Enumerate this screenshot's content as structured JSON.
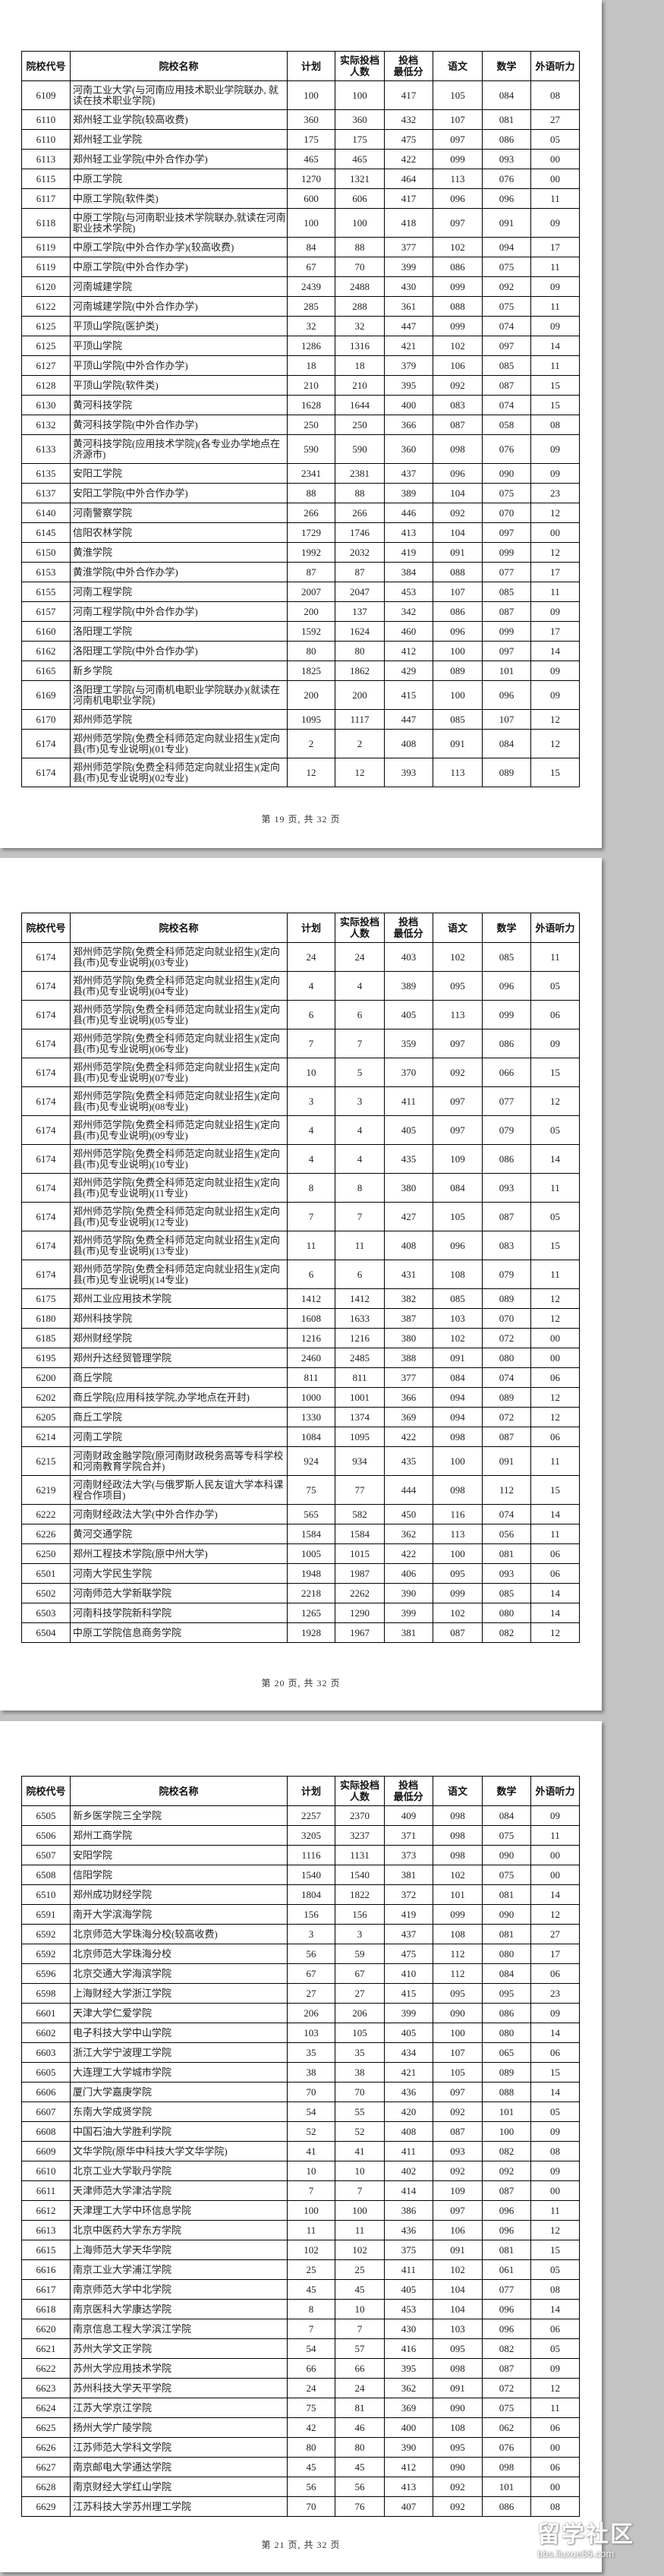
{
  "columns": [
    "院校代号",
    "院校名称",
    "计划",
    "实际投档人数",
    "投档最低分",
    "语文",
    "数学",
    "外语听力"
  ],
  "header_lines": {
    "actual": [
      "实际投档",
      "人数"
    ],
    "min": [
      "投档",
      "最低分"
    ]
  },
  "pages": [
    {
      "footer": "第 19 页, 共 32 页",
      "rows": [
        [
          "6109",
          "河南工业大学(与河南应用技术职业学院联办, 就读在技术职业学院)",
          "100",
          "100",
          "417",
          "105",
          "084",
          "08"
        ],
        [
          "6110",
          "郑州轻工业学院(较高收费)",
          "360",
          "360",
          "432",
          "107",
          "081",
          "27"
        ],
        [
          "6110",
          "郑州轻工业学院",
          "175",
          "175",
          "475",
          "097",
          "086",
          "05"
        ],
        [
          "6113",
          "郑州轻工业学院(中外合作办学)",
          "465",
          "465",
          "422",
          "099",
          "093",
          "00"
        ],
        [
          "6115",
          "中原工学院",
          "1270",
          "1321",
          "464",
          "113",
          "076",
          "00"
        ],
        [
          "6117",
          "中原工学院(软件类)",
          "600",
          "606",
          "417",
          "096",
          "096",
          "11"
        ],
        [
          "6118",
          "中原工学院(与河南职业技术学院联办,就读在河南职业技术学院)",
          "100",
          "100",
          "418",
          "097",
          "091",
          "09"
        ],
        [
          "6119",
          "中原工学院(中外合作办学)(较高收费)",
          "84",
          "88",
          "377",
          "102",
          "094",
          "17"
        ],
        [
          "6119",
          "中原工学院(中外合作办学)",
          "67",
          "70",
          "399",
          "086",
          "075",
          "11"
        ],
        [
          "6120",
          "河南城建学院",
          "2439",
          "2488",
          "430",
          "099",
          "092",
          "09"
        ],
        [
          "6122",
          "河南城建学院(中外合作办学)",
          "285",
          "288",
          "361",
          "088",
          "075",
          "11"
        ],
        [
          "6125",
          "平顶山学院(医护类)",
          "32",
          "32",
          "447",
          "099",
          "074",
          "09"
        ],
        [
          "6125",
          "平顶山学院",
          "1286",
          "1316",
          "421",
          "102",
          "097",
          "14"
        ],
        [
          "6127",
          "平顶山学院(中外合作办学)",
          "18",
          "18",
          "379",
          "106",
          "085",
          "11"
        ],
        [
          "6128",
          "平顶山学院(软件类)",
          "210",
          "210",
          "395",
          "092",
          "087",
          "15"
        ],
        [
          "6130",
          "黄河科技学院",
          "1628",
          "1644",
          "400",
          "083",
          "074",
          "15"
        ],
        [
          "6132",
          "黄河科技学院(中外合作办学)",
          "250",
          "250",
          "366",
          "087",
          "058",
          "08"
        ],
        [
          "6133",
          "黄河科技学院(应用技术学院)(各专业办学地点在济源市)",
          "590",
          "590",
          "360",
          "098",
          "076",
          "09"
        ],
        [
          "6135",
          "安阳工学院",
          "2341",
          "2381",
          "437",
          "096",
          "090",
          "09"
        ],
        [
          "6137",
          "安阳工学院(中外合作办学)",
          "88",
          "88",
          "389",
          "104",
          "075",
          "23"
        ],
        [
          "6140",
          "河南警察学院",
          "266",
          "266",
          "446",
          "092",
          "070",
          "12"
        ],
        [
          "6145",
          "信阳农林学院",
          "1729",
          "1746",
          "413",
          "104",
          "097",
          "00"
        ],
        [
          "6150",
          "黄淮学院",
          "1992",
          "2032",
          "419",
          "091",
          "099",
          "12"
        ],
        [
          "6153",
          "黄淮学院(中外合作办学)",
          "87",
          "87",
          "384",
          "088",
          "077",
          "17"
        ],
        [
          "6155",
          "河南工程学院",
          "2007",
          "2047",
          "453",
          "107",
          "085",
          "11"
        ],
        [
          "6157",
          "河南工程学院(中外合作办学)",
          "200",
          "137",
          "342",
          "086",
          "087",
          "09"
        ],
        [
          "6160",
          "洛阳理工学院",
          "1592",
          "1624",
          "460",
          "096",
          "099",
          "17"
        ],
        [
          "6162",
          "洛阳理工学院(中外合作办学)",
          "80",
          "80",
          "412",
          "100",
          "097",
          "14"
        ],
        [
          "6165",
          "新乡学院",
          "1825",
          "1862",
          "429",
          "089",
          "101",
          "09"
        ],
        [
          "6169",
          "洛阳理工学院(与河南机电职业学院联办)(就读在河南机电职业学院)",
          "200",
          "200",
          "415",
          "100",
          "096",
          "09"
        ],
        [
          "6170",
          "郑州师范学院",
          "1095",
          "1117",
          "447",
          "085",
          "107",
          "12"
        ],
        [
          "6174",
          "郑州师范学院(免费全科师范定向就业招生)(定向县(市)见专业说明)(01专业)",
          "2",
          "2",
          "408",
          "091",
          "084",
          "12"
        ],
        [
          "6174",
          "郑州师范学院(免费全科师范定向就业招生)(定向县(市)见专业说明)(02专业)",
          "12",
          "12",
          "393",
          "113",
          "089",
          "15"
        ]
      ]
    },
    {
      "footer": "第 20 页, 共 32 页",
      "rows": [
        [
          "6174",
          "郑州师范学院(免费全科师范定向就业招生)(定向县(市)见专业说明)(03专业)",
          "24",
          "24",
          "403",
          "102",
          "085",
          "11"
        ],
        [
          "6174",
          "郑州师范学院(免费全科师范定向就业招生)(定向县(市)见专业说明)(04专业)",
          "4",
          "4",
          "389",
          "095",
          "096",
          "05"
        ],
        [
          "6174",
          "郑州师范学院(免费全科师范定向就业招生)(定向县(市)见专业说明)(05专业)",
          "6",
          "6",
          "405",
          "113",
          "099",
          "06"
        ],
        [
          "6174",
          "郑州师范学院(免费全科师范定向就业招生)(定向县(市)见专业说明)(06专业)",
          "7",
          "7",
          "359",
          "097",
          "086",
          "09"
        ],
        [
          "6174",
          "郑州师范学院(免费全科师范定向就业招生)(定向县(市)见专业说明)(07专业)",
          "10",
          "5",
          "370",
          "092",
          "066",
          "15"
        ],
        [
          "6174",
          "郑州师范学院(免费全科师范定向就业招生)(定向县(市)见专业说明)(08专业)",
          "3",
          "3",
          "411",
          "097",
          "077",
          "12"
        ],
        [
          "6174",
          "郑州师范学院(免费全科师范定向就业招生)(定向县(市)见专业说明)(09专业)",
          "4",
          "4",
          "405",
          "097",
          "079",
          "05"
        ],
        [
          "6174",
          "郑州师范学院(免费全科师范定向就业招生)(定向县(市)见专业说明)(10专业)",
          "4",
          "4",
          "435",
          "109",
          "086",
          "14"
        ],
        [
          "6174",
          "郑州师范学院(免费全科师范定向就业招生)(定向县(市)见专业说明)(11专业)",
          "8",
          "8",
          "380",
          "084",
          "093",
          "11"
        ],
        [
          "6174",
          "郑州师范学院(免费全科师范定向就业招生)(定向县(市)见专业说明)(12专业)",
          "7",
          "7",
          "427",
          "105",
          "087",
          "05"
        ],
        [
          "6174",
          "郑州师范学院(免费全科师范定向就业招生)(定向县(市)见专业说明)(13专业)",
          "11",
          "11",
          "408",
          "096",
          "083",
          "15"
        ],
        [
          "6174",
          "郑州师范学院(免费全科师范定向就业招生)(定向县(市)见专业说明)(14专业)",
          "6",
          "6",
          "431",
          "108",
          "079",
          "11"
        ],
        [
          "6175",
          "郑州工业应用技术学院",
          "1412",
          "1412",
          "382",
          "085",
          "089",
          "12"
        ],
        [
          "6180",
          "郑州科技学院",
          "1608",
          "1633",
          "387",
          "103",
          "070",
          "12"
        ],
        [
          "6185",
          "郑州财经学院",
          "1216",
          "1216",
          "380",
          "102",
          "072",
          "00"
        ],
        [
          "6195",
          "郑州升达经贸管理学院",
          "2460",
          "2485",
          "388",
          "091",
          "080",
          "00"
        ],
        [
          "6200",
          "商丘学院",
          "811",
          "811",
          "377",
          "084",
          "074",
          "06"
        ],
        [
          "6202",
          "商丘学院(应用科技学院,办学地点在开封)",
          "1000",
          "1001",
          "366",
          "094",
          "089",
          "12"
        ],
        [
          "6205",
          "商丘工学院",
          "1330",
          "1374",
          "369",
          "094",
          "072",
          "12"
        ],
        [
          "6214",
          "河南工学院",
          "1084",
          "1095",
          "422",
          "098",
          "087",
          "06"
        ],
        [
          "6215",
          "河南财政金融学院(原河南财政税务高等专科学校和河南教育学院合并)",
          "924",
          "934",
          "435",
          "100",
          "091",
          "11"
        ],
        [
          "6219",
          "河南财经政法大学(与俄罗斯人民友谊大学本科课程合作项目)",
          "75",
          "77",
          "444",
          "098",
          "112",
          "15"
        ],
        [
          "6222",
          "河南财经政法大学(中外合作办学)",
          "565",
          "582",
          "450",
          "116",
          "074",
          "14"
        ],
        [
          "6226",
          "黄河交通学院",
          "1584",
          "1584",
          "362",
          "113",
          "056",
          "11"
        ],
        [
          "6250",
          "郑州工程技术学院(原中州大学)",
          "1005",
          "1015",
          "422",
          "100",
          "081",
          "06"
        ],
        [
          "6501",
          "河南大学民生学院",
          "1948",
          "1987",
          "406",
          "095",
          "093",
          "06"
        ],
        [
          "6502",
          "河南师范大学新联学院",
          "2218",
          "2262",
          "390",
          "099",
          "085",
          "14"
        ],
        [
          "6503",
          "河南科技学院新科学院",
          "1265",
          "1290",
          "399",
          "102",
          "080",
          "14"
        ],
        [
          "6504",
          "中原工学院信息商务学院",
          "1928",
          "1967",
          "381",
          "087",
          "082",
          "12"
        ]
      ]
    },
    {
      "footer": "第 21 页, 共 32 页",
      "rows": [
        [
          "6505",
          "新乡医学院三全学院",
          "2257",
          "2370",
          "409",
          "098",
          "084",
          "09"
        ],
        [
          "6506",
          "郑州工商学院",
          "3205",
          "3237",
          "371",
          "098",
          "075",
          "11"
        ],
        [
          "6507",
          "安阳学院",
          "1116",
          "1131",
          "373",
          "098",
          "090",
          "00"
        ],
        [
          "6508",
          "信阳学院",
          "1540",
          "1540",
          "381",
          "102",
          "075",
          "00"
        ],
        [
          "6510",
          "郑州成功财经学院",
          "1804",
          "1822",
          "372",
          "101",
          "081",
          "14"
        ],
        [
          "6591",
          "南开大学滨海学院",
          "156",
          "156",
          "419",
          "099",
          "090",
          "12"
        ],
        [
          "6592",
          "北京师范大学珠海分校(较高收费)",
          "3",
          "3",
          "437",
          "108",
          "081",
          "27"
        ],
        [
          "6592",
          "北京师范大学珠海分校",
          "56",
          "59",
          "475",
          "112",
          "080",
          "17"
        ],
        [
          "6596",
          "北京交通大学海滨学院",
          "67",
          "67",
          "410",
          "112",
          "084",
          "06"
        ],
        [
          "6598",
          "上海财经大学浙江学院",
          "27",
          "27",
          "415",
          "095",
          "095",
          "23"
        ],
        [
          "6601",
          "天津大学仁爱学院",
          "206",
          "206",
          "399",
          "090",
          "086",
          "09"
        ],
        [
          "6602",
          "电子科技大学中山学院",
          "103",
          "105",
          "405",
          "100",
          "080",
          "14"
        ],
        [
          "6603",
          "浙江大学宁波理工学院",
          "35",
          "35",
          "434",
          "107",
          "065",
          "06"
        ],
        [
          "6605",
          "大连理工大学城市学院",
          "38",
          "38",
          "421",
          "105",
          "089",
          "15"
        ],
        [
          "6606",
          "厦门大学嘉庚学院",
          "70",
          "70",
          "436",
          "097",
          "088",
          "14"
        ],
        [
          "6607",
          "东南大学成贤学院",
          "54",
          "55",
          "420",
          "092",
          "101",
          "05"
        ],
        [
          "6608",
          "中国石油大学胜利学院",
          "52",
          "52",
          "408",
          "087",
          "100",
          "09"
        ],
        [
          "6609",
          "文华学院(原华中科技大学文华学院)",
          "41",
          "41",
          "411",
          "093",
          "082",
          "08"
        ],
        [
          "6610",
          "北京工业大学耿丹学院",
          "10",
          "10",
          "402",
          "092",
          "092",
          "09"
        ],
        [
          "6611",
          "天津师范大学津沽学院",
          "7",
          "7",
          "414",
          "109",
          "087",
          "00"
        ],
        [
          "6612",
          "天津理工大学中环信息学院",
          "100",
          "100",
          "386",
          "097",
          "096",
          "11"
        ],
        [
          "6613",
          "北京中医药大学东方学院",
          "11",
          "11",
          "436",
          "106",
          "096",
          "12"
        ],
        [
          "6615",
          "上海师范大学天华学院",
          "102",
          "102",
          "375",
          "091",
          "081",
          "15"
        ],
        [
          "6616",
          "南京工业大学浦江学院",
          "25",
          "25",
          "411",
          "102",
          "061",
          "05"
        ],
        [
          "6617",
          "南京师范大学中北学院",
          "45",
          "45",
          "405",
          "104",
          "077",
          "08"
        ],
        [
          "6618",
          "南京医科大学康达学院",
          "8",
          "10",
          "453",
          "104",
          "096",
          "14"
        ],
        [
          "6620",
          "南京信息工程大学滨江学院",
          "7",
          "7",
          "430",
          "103",
          "096",
          "06"
        ],
        [
          "6621",
          "苏州大学文正学院",
          "54",
          "57",
          "416",
          "095",
          "082",
          "05"
        ],
        [
          "6622",
          "苏州大学应用技术学院",
          "66",
          "66",
          "395",
          "098",
          "087",
          "09"
        ],
        [
          "6623",
          "苏州科技大学天平学院",
          "24",
          "24",
          "362",
          "091",
          "072",
          "12"
        ],
        [
          "6624",
          "江苏大学京江学院",
          "75",
          "81",
          "369",
          "090",
          "075",
          "11"
        ],
        [
          "6625",
          "扬州大学广陵学院",
          "42",
          "46",
          "400",
          "108",
          "062",
          "06"
        ],
        [
          "6626",
          "江苏师范大学科文学院",
          "80",
          "80",
          "390",
          "095",
          "076",
          "00"
        ],
        [
          "6627",
          "南京邮电大学通达学院",
          "45",
          "45",
          "412",
          "090",
          "098",
          "06"
        ],
        [
          "6628",
          "南京财经大学红山学院",
          "56",
          "56",
          "413",
          "092",
          "101",
          "00"
        ],
        [
          "6629",
          "江苏科技大学苏州理工学院",
          "70",
          "76",
          "407",
          "092",
          "086",
          "08"
        ]
      ]
    }
  ],
  "watermark": {
    "logo_text": "留学社区",
    "url": "bbs.liuxue86.com"
  }
}
